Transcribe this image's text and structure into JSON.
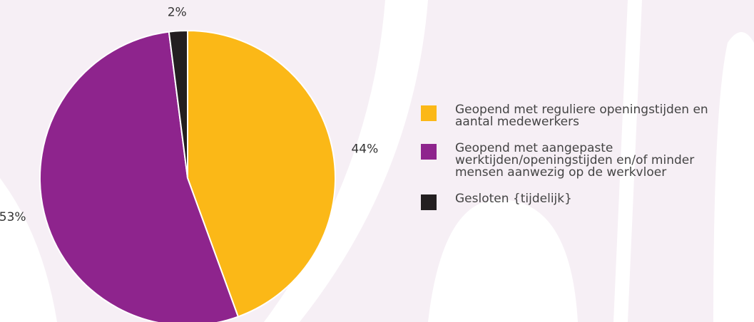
{
  "chart_data": {
    "type": "pie",
    "categories": [
      "Geopend met reguliere openingstijden en aantal medewerkers",
      "Geopend met aangepaste werktijden/openingstijden en/of minder mensen aanwezig op de werkvloer",
      "Gesloten {tijdelijk}"
    ],
    "values": [
      44,
      53,
      2
    ],
    "value_labels": [
      "44%",
      "53%",
      "2%"
    ],
    "colors": [
      "#fbb817",
      "#8e248d",
      "#231f20"
    ]
  }
}
